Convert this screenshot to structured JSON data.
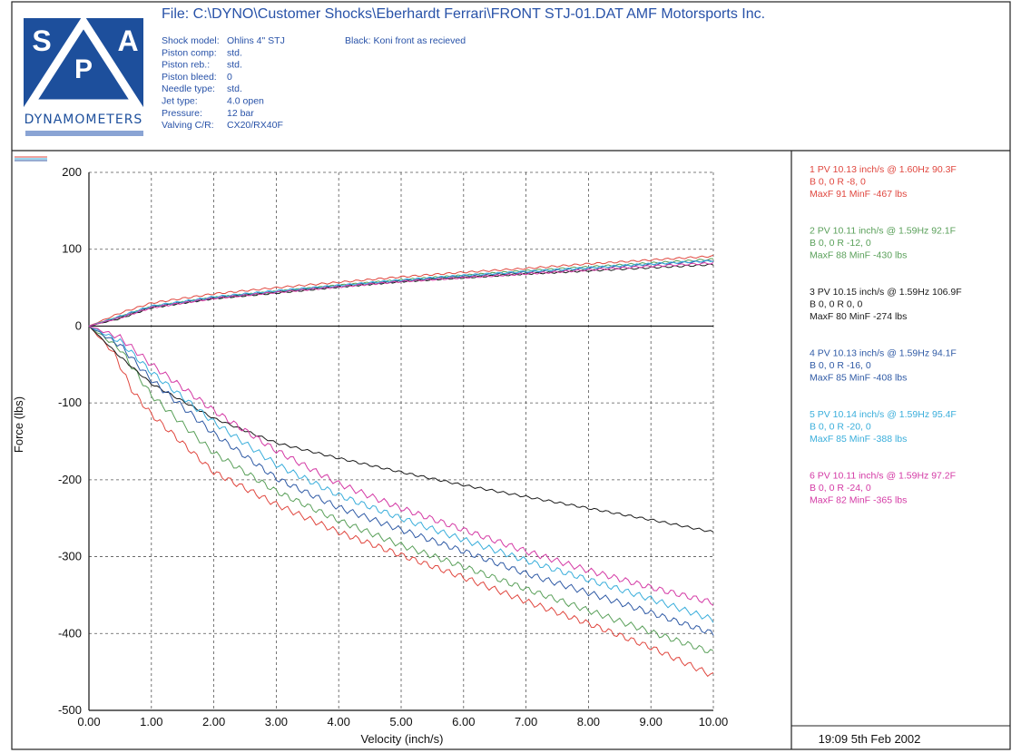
{
  "header": {
    "logo": {
      "letters": [
        "S",
        "P",
        "A"
      ],
      "caption": "DYNAMOMETERS"
    },
    "file_title": "File: C:\\DYNO\\Customer Shocks\\Eberhardt Ferrari\\FRONT STJ-01.DAT  AMF Motorsports Inc.",
    "info": [
      {
        "key": "Shock model:",
        "value": "Ohlins 4\" STJ"
      },
      {
        "key": "Piston comp:",
        "value": "std."
      },
      {
        "key": "Piston reb.:",
        "value": "std."
      },
      {
        "key": "Piston bleed:",
        "value": "0"
      },
      {
        "key": "Needle type:",
        "value": "std."
      },
      {
        "key": "Jet type:",
        "value": "4.0 open"
      },
      {
        "key": "Pressure:",
        "value": "12 bar"
      },
      {
        "key": "Valving C/R:",
        "value": "CX20/RX40F"
      }
    ],
    "note": "Black: Koni front as recieved"
  },
  "timestamp": "19:09  5th Feb 2002",
  "chart_data": {
    "type": "line",
    "xlabel": "Velocity (inch/s)",
    "ylabel": "Force (lbs)",
    "xlim": [
      0,
      10
    ],
    "ylim": [
      -500,
      200
    ],
    "xticks": [
      "0.00",
      "1.00",
      "2.00",
      "3.00",
      "4.00",
      "5.00",
      "6.00",
      "7.00",
      "8.00",
      "9.00",
      "10.00"
    ],
    "yticks": [
      "200",
      "100",
      "0",
      "-100",
      "-200",
      "-300",
      "-400",
      "-500"
    ],
    "grid": true,
    "legend_position": "right",
    "series": [
      {
        "color": "#e0473f",
        "legend": [
          "1 PV 10.13 inch/s @ 1.60Hz 90.3F",
          "B  0,  0    R  -8,  0",
          "MaxF   91   MinF  -467 lbs"
        ],
        "upper": [
          [
            0,
            0
          ],
          [
            0.5,
            17
          ],
          [
            1,
            30
          ],
          [
            2,
            42
          ],
          [
            3,
            50
          ],
          [
            4,
            57
          ],
          [
            5,
            64
          ],
          [
            6,
            70
          ],
          [
            7,
            75
          ],
          [
            8,
            81
          ],
          [
            9,
            86
          ],
          [
            10,
            91
          ]
        ],
        "lower": [
          [
            0,
            0
          ],
          [
            0.4,
            -35
          ],
          [
            0.7,
            -85
          ],
          [
            1,
            -115
          ],
          [
            2,
            -190
          ],
          [
            3,
            -232
          ],
          [
            4,
            -268
          ],
          [
            5,
            -298
          ],
          [
            6,
            -327
          ],
          [
            7,
            -358
          ],
          [
            8,
            -387
          ],
          [
            9,
            -418
          ],
          [
            10,
            -455
          ]
        ]
      },
      {
        "color": "#5aa05a",
        "legend": [
          "2 PV 10.11 inch/s @ 1.59Hz 92.1F",
          "B  0,  0    R  -12,  0",
          "MaxF   88   MinF  -430 lbs"
        ],
        "upper": [
          [
            0,
            0
          ],
          [
            0.5,
            12
          ],
          [
            1,
            25
          ],
          [
            2,
            37
          ],
          [
            3,
            45
          ],
          [
            4,
            53
          ],
          [
            5,
            60
          ],
          [
            6,
            66
          ],
          [
            7,
            72
          ],
          [
            8,
            77
          ],
          [
            9,
            82
          ],
          [
            10,
            87
          ]
        ],
        "lower": [
          [
            0,
            0
          ],
          [
            0.5,
            -30
          ],
          [
            1,
            -90
          ],
          [
            2,
            -165
          ],
          [
            3,
            -215
          ],
          [
            4,
            -253
          ],
          [
            5,
            -285
          ],
          [
            6,
            -313
          ],
          [
            7,
            -342
          ],
          [
            8,
            -370
          ],
          [
            9,
            -398
          ],
          [
            10,
            -425
          ]
        ]
      },
      {
        "color": "#1a1a1a",
        "legend": [
          "3 PV 10.15 inch/s @ 1.59Hz 106.9F",
          "B  0,  0    R  0,  0",
          "MaxF   80   MinF  -274 lbs"
        ],
        "upper": [
          [
            0,
            0
          ],
          [
            0.5,
            10
          ],
          [
            1,
            24
          ],
          [
            2,
            36
          ],
          [
            3,
            43
          ],
          [
            4,
            51
          ],
          [
            5,
            58
          ],
          [
            6,
            63
          ],
          [
            7,
            68
          ],
          [
            8,
            72
          ],
          [
            9,
            76
          ],
          [
            10,
            80
          ]
        ],
        "lower": [
          [
            0,
            0
          ],
          [
            0.5,
            -40
          ],
          [
            1,
            -75
          ],
          [
            2,
            -120
          ],
          [
            3,
            -152
          ],
          [
            4,
            -172
          ],
          [
            5,
            -190
          ],
          [
            6,
            -207
          ],
          [
            7,
            -222
          ],
          [
            8,
            -237
          ],
          [
            9,
            -252
          ],
          [
            10,
            -268
          ]
        ]
      },
      {
        "color": "#2f5aa5",
        "legend": [
          "4 PV 10.13 inch/s @ 1.59Hz 94.1F",
          "B  0,  0    R  -16,  0",
          "MaxF   85   MinF  -408 lbs"
        ],
        "upper": [
          [
            0,
            0
          ],
          [
            0.5,
            12
          ],
          [
            1,
            25
          ],
          [
            2,
            37
          ],
          [
            3,
            45
          ],
          [
            4,
            52
          ],
          [
            5,
            59
          ],
          [
            6,
            65
          ],
          [
            7,
            70
          ],
          [
            8,
            75
          ],
          [
            9,
            80
          ],
          [
            10,
            85
          ]
        ],
        "lower": [
          [
            0,
            0
          ],
          [
            0.5,
            -25
          ],
          [
            1,
            -70
          ],
          [
            2,
            -140
          ],
          [
            3,
            -198
          ],
          [
            4,
            -236
          ],
          [
            5,
            -265
          ],
          [
            6,
            -293
          ],
          [
            7,
            -322
          ],
          [
            8,
            -347
          ],
          [
            9,
            -373
          ],
          [
            10,
            -400
          ]
        ]
      },
      {
        "color": "#3aaedb",
        "legend": [
          "5 PV 10.14 inch/s @ 1.59Hz 95.4F",
          "B  0,  0    R  -20,  0",
          "MaxF   85   MinF  -388 lbs"
        ],
        "upper": [
          [
            0,
            0
          ],
          [
            0.5,
            13
          ],
          [
            1,
            26
          ],
          [
            2,
            38
          ],
          [
            3,
            46
          ],
          [
            4,
            53
          ],
          [
            5,
            60
          ],
          [
            6,
            66
          ],
          [
            7,
            71
          ],
          [
            8,
            76
          ],
          [
            9,
            81
          ],
          [
            10,
            85
          ]
        ],
        "lower": [
          [
            0,
            0
          ],
          [
            0.5,
            -20
          ],
          [
            1,
            -60
          ],
          [
            2,
            -125
          ],
          [
            3,
            -180
          ],
          [
            4,
            -220
          ],
          [
            5,
            -250
          ],
          [
            6,
            -278
          ],
          [
            7,
            -305
          ],
          [
            8,
            -330
          ],
          [
            9,
            -355
          ],
          [
            10,
            -382
          ]
        ]
      },
      {
        "color": "#d43aa5",
        "legend": [
          "6 PV 10.11 inch/s @ 1.59Hz 97.2F",
          "B  0,  0    R  -24,  0",
          "MaxF   82   MinF  -365 lbs"
        ],
        "upper": [
          [
            0,
            0
          ],
          [
            0.5,
            11
          ],
          [
            1,
            24
          ],
          [
            2,
            36
          ],
          [
            3,
            44
          ],
          [
            4,
            51
          ],
          [
            5,
            58
          ],
          [
            6,
            63
          ],
          [
            7,
            68
          ],
          [
            8,
            73
          ],
          [
            9,
            78
          ],
          [
            10,
            82
          ]
        ],
        "lower": [
          [
            0,
            0
          ],
          [
            0.5,
            -15
          ],
          [
            1,
            -50
          ],
          [
            2,
            -110
          ],
          [
            3,
            -162
          ],
          [
            4,
            -205
          ],
          [
            5,
            -237
          ],
          [
            6,
            -265
          ],
          [
            7,
            -293
          ],
          [
            8,
            -318
          ],
          [
            9,
            -340
          ],
          [
            10,
            -360
          ]
        ]
      }
    ]
  },
  "colors": {
    "frame": "#222222",
    "accent": "#2852a8",
    "logo_blue": "#1d4f9c"
  }
}
